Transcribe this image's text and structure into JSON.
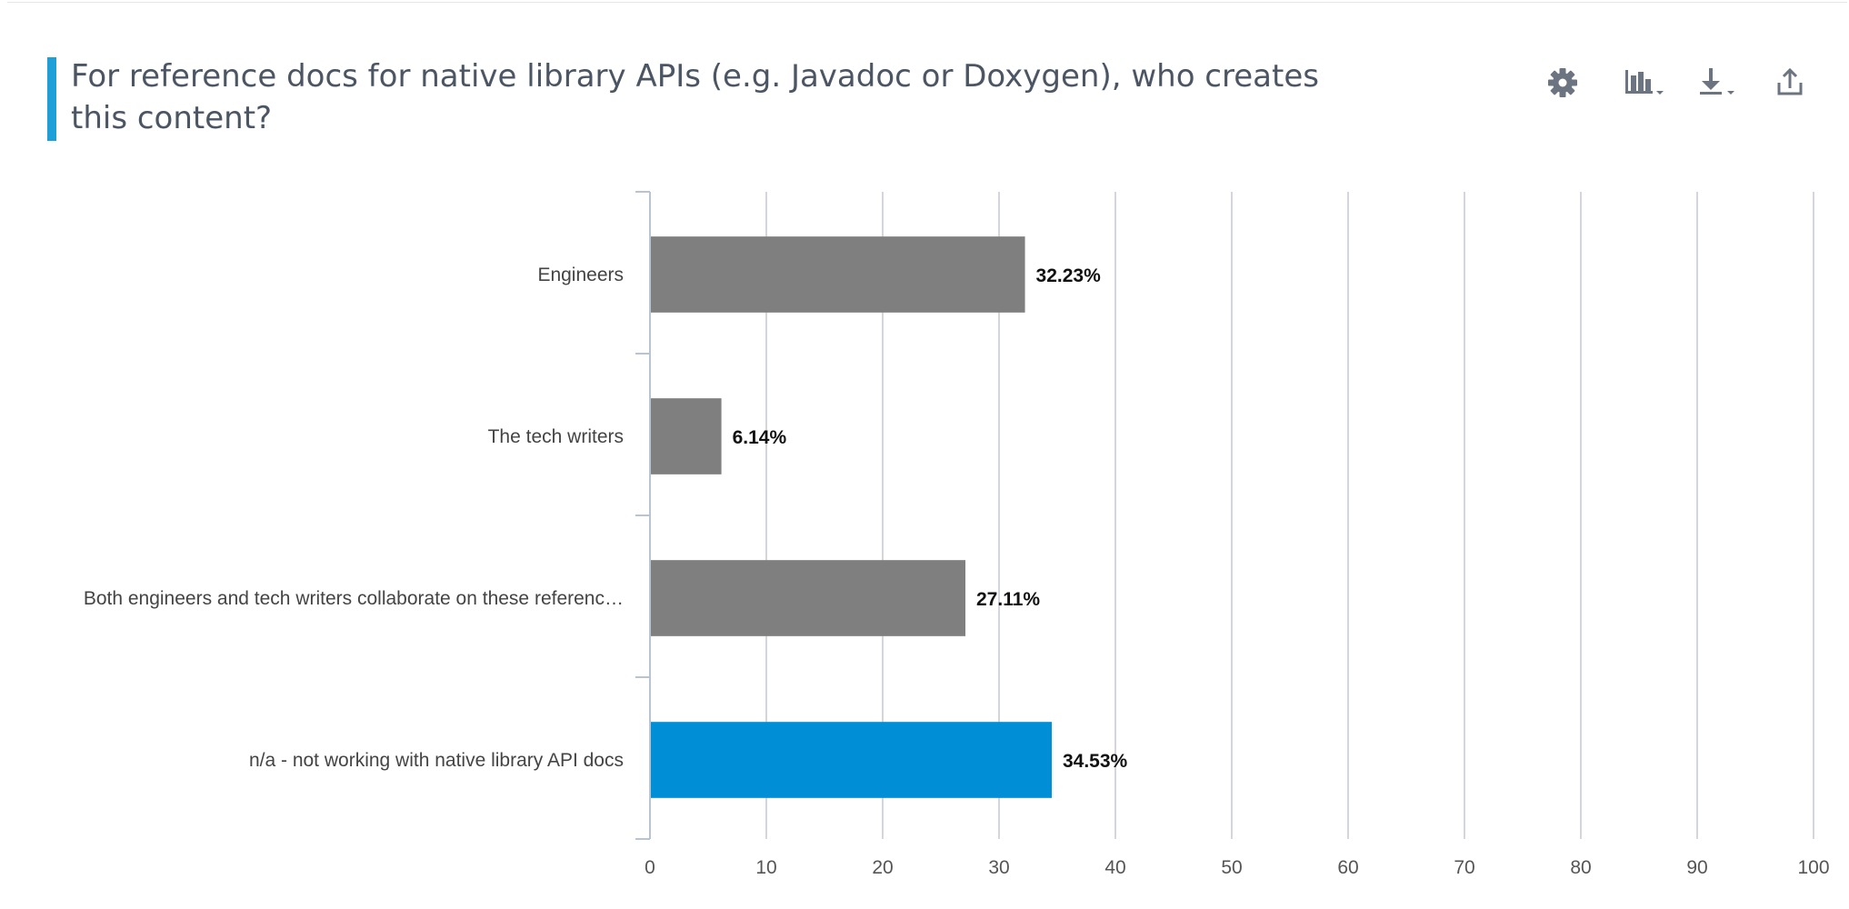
{
  "header": {
    "title": "For reference docs for native library APIs (e.g. Javadoc or Doxygen), who creates this content?"
  },
  "toolbar": {
    "items": [
      {
        "name": "settings",
        "icon": "gear-icon"
      },
      {
        "name": "chart-type",
        "icon": "bar-chart-icon"
      },
      {
        "name": "download",
        "icon": "download-icon"
      },
      {
        "name": "share",
        "icon": "share-icon"
      }
    ]
  },
  "colors": {
    "accent": "#1f9fd8",
    "bar_default": "#7f7f7f",
    "bar_highlight": "#008fd6",
    "grid": "#d3d7dc",
    "axis": "#b8c4d0",
    "icon": "#6b7480"
  },
  "chart_data": {
    "type": "bar",
    "orientation": "horizontal",
    "categories": [
      "Engineers",
      "The tech writers",
      "Both engineers and tech writers collaborate on these referenc…",
      "n/a - not working with native library API docs"
    ],
    "values": [
      32.23,
      6.14,
      27.11,
      34.53
    ],
    "value_labels": [
      "32.23%",
      "6.14%",
      "27.11%",
      "34.53%"
    ],
    "highlighted_index": 3,
    "xlim": [
      0,
      100
    ],
    "xticks": [
      0,
      10,
      20,
      30,
      40,
      50,
      60,
      70,
      80,
      90,
      100
    ],
    "grid": true,
    "legend": "none"
  }
}
